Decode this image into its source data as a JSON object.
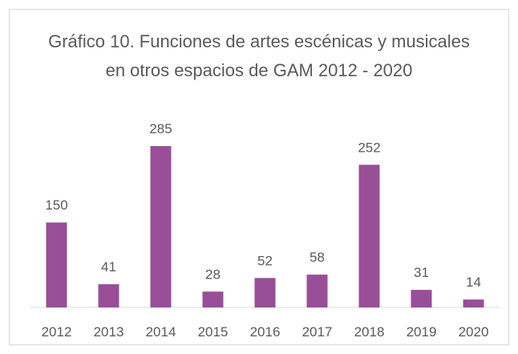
{
  "chart_data": {
    "type": "bar",
    "title": "Gráfico 10. Funciones de artes escénicas y musicales en otros espacios de GAM 2012 - 2020",
    "categories": [
      "2012",
      "2013",
      "2014",
      "2015",
      "2016",
      "2017",
      "2018",
      "2019",
      "2020"
    ],
    "values": [
      150,
      41,
      285,
      28,
      52,
      58,
      252,
      31,
      14
    ],
    "color": "#984f98"
  }
}
